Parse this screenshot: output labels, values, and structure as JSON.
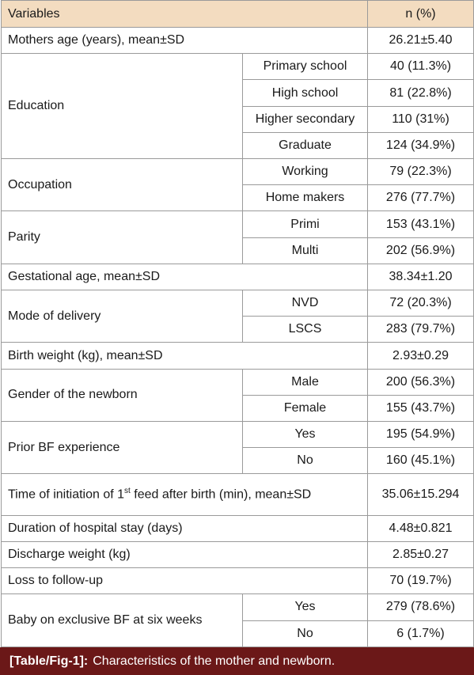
{
  "header": {
    "variables": "Variables",
    "n": "n (%)"
  },
  "rows": [
    {
      "label": "Mothers age (years), mean±SD",
      "value": "26.21±5.40"
    },
    {
      "label": "Education",
      "items": [
        {
          "label": "Primary school",
          "value": "40 (11.3%)"
        },
        {
          "label": "High school",
          "value": "81 (22.8%)"
        },
        {
          "label": "Higher secondary",
          "value": "110 (31%)"
        },
        {
          "label": "Graduate",
          "value": "124 (34.9%)"
        }
      ]
    },
    {
      "label": "Occupation",
      "items": [
        {
          "label": "Working",
          "value": "79 (22.3%)"
        },
        {
          "label": "Home makers",
          "value": "276 (77.7%)"
        }
      ]
    },
    {
      "label": "Parity",
      "items": [
        {
          "label": "Primi",
          "value": "153 (43.1%)"
        },
        {
          "label": "Multi",
          "value": "202 (56.9%)"
        }
      ]
    },
    {
      "label": "Gestational age, mean±SD",
      "value": "38.34±1.20"
    },
    {
      "label": "Mode of delivery",
      "items": [
        {
          "label": "NVD",
          "value": "72 (20.3%)"
        },
        {
          "label": "LSCS",
          "value": "283 (79.7%)"
        }
      ]
    },
    {
      "label": "Birth weight (kg), mean±SD",
      "value": "2.93±0.29"
    },
    {
      "label": "Gender of the newborn",
      "items": [
        {
          "label": "Male",
          "value": "200 (56.3%)"
        },
        {
          "label": "Female",
          "value": "155 (43.7%)"
        }
      ]
    },
    {
      "label": "Prior BF experience",
      "items": [
        {
          "label": "Yes",
          "value": "195 (54.9%)"
        },
        {
          "label": "No",
          "value": "160 (45.1%)"
        }
      ]
    },
    {
      "label": "Time of initiation of 1",
      "label_sup": "st",
      "label_rest": " feed after birth (min), mean±SD",
      "value": "35.06±15.294"
    },
    {
      "label": "Duration of hospital stay (days)",
      "value": "4.48±0.821"
    },
    {
      "label": "Discharge weight (kg)",
      "value": "2.85±0.27"
    },
    {
      "label": "Loss to follow-up",
      "value": "70 (19.7%)"
    },
    {
      "label": "Baby on exclusive BF at six weeks",
      "items": [
        {
          "label": "Yes",
          "value": "279 (78.6%)"
        },
        {
          "label": "No",
          "value": "6 (1.7%)"
        }
      ]
    }
  ],
  "caption": {
    "tag": "[Table/Fig-1]:",
    "text": "Characteristics of the mother and newborn."
  }
}
